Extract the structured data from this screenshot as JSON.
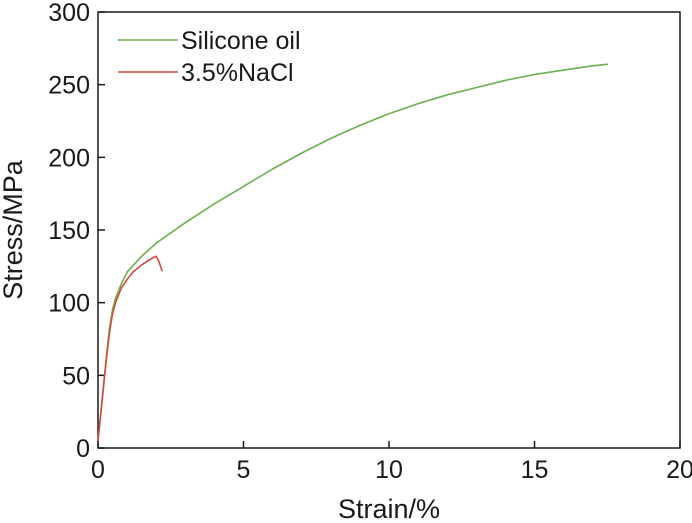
{
  "chart_data": {
    "type": "line",
    "title": "",
    "xlabel": "Strain/%",
    "ylabel": "Stress/MPa",
    "xlim": [
      0,
      20
    ],
    "ylim": [
      0,
      300
    ],
    "xticks": [
      "0",
      "5",
      "10",
      "15",
      "20"
    ],
    "yticks": [
      "0",
      "50",
      "100",
      "150",
      "200",
      "250",
      "300"
    ],
    "grid": false,
    "legend_position": "top-left",
    "series": [
      {
        "name": "Silicone oil",
        "color": "#6ab04c",
        "x": [
          0,
          0.1,
          0.2,
          0.3,
          0.4,
          0.5,
          0.6,
          0.8,
          1.0,
          1.5,
          2.0,
          3.0,
          4.0,
          5.0,
          6.0,
          7.0,
          8.0,
          9.0,
          10.0,
          11.0,
          12.0,
          13.0,
          14.0,
          15.0,
          16.0,
          17.0,
          17.5
        ],
        "y": [
          5,
          25,
          45,
          65,
          83,
          95,
          103,
          113,
          121,
          132,
          141,
          155,
          168,
          180,
          192,
          203,
          213,
          222,
          230,
          237,
          243,
          248,
          253,
          257,
          260,
          263,
          264
        ]
      },
      {
        "name": "3.5%NaCl",
        "color": "#d44a3a",
        "x": [
          0,
          0.1,
          0.2,
          0.3,
          0.4,
          0.5,
          0.6,
          0.8,
          1.0,
          1.2,
          1.5,
          1.8,
          2.0,
          2.1,
          2.2
        ],
        "y": [
          5,
          24,
          44,
          63,
          80,
          92,
          100,
          110,
          116,
          121,
          126,
          130,
          132,
          128,
          122
        ]
      }
    ]
  }
}
